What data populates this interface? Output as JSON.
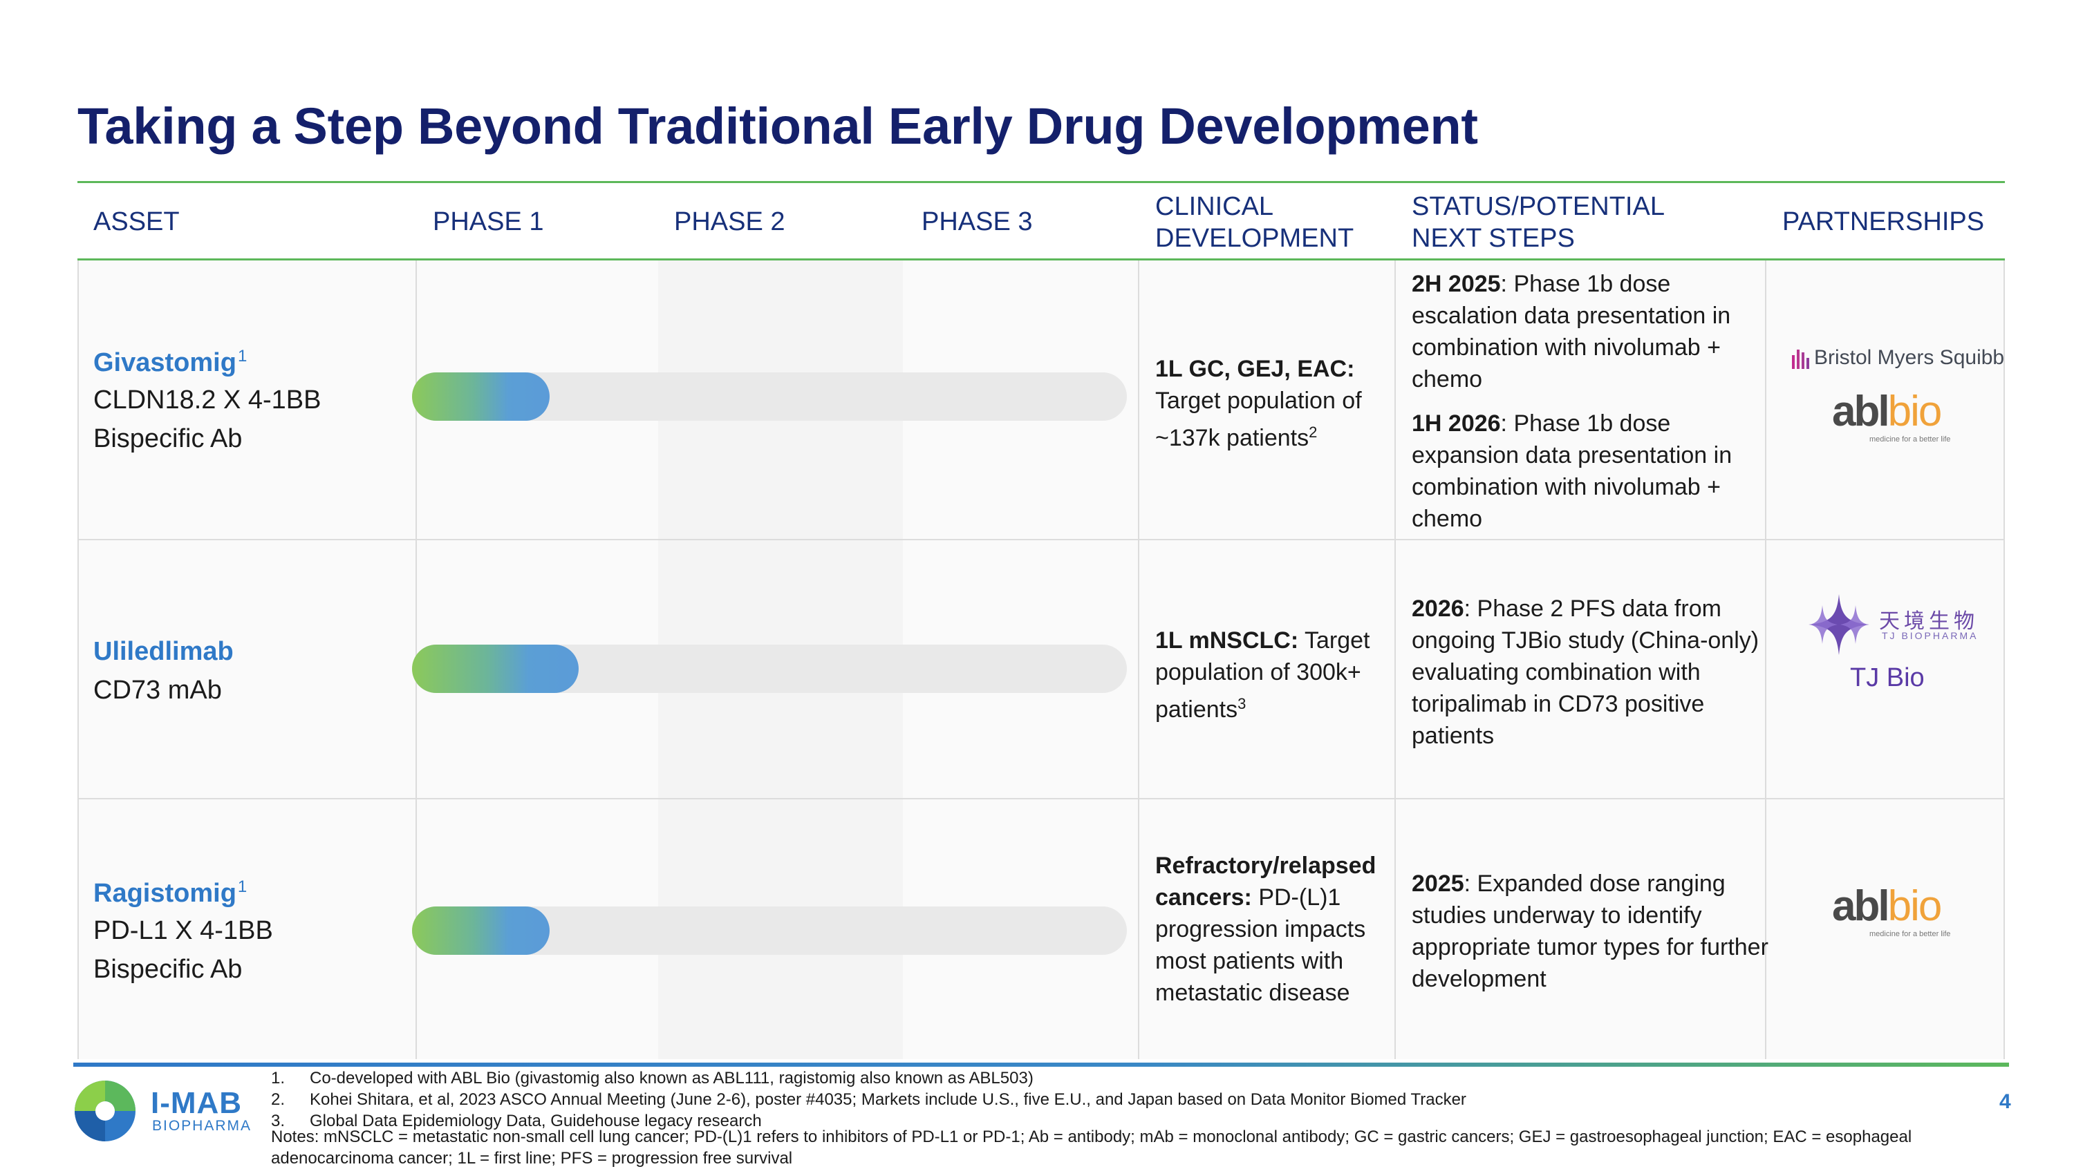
{
  "title": "Taking a Step Beyond Traditional Early Drug Development",
  "headers": {
    "asset": "ASSET",
    "phase1": "PHASE 1",
    "phase2": "PHASE 2",
    "phase3": "PHASE  3",
    "clinical_1": "CLINICAL",
    "clinical_2": "DEVELOPMENT",
    "status_1": "STATUS/POTENTIAL",
    "status_2": "NEXT STEPS",
    "partnerships": "PARTNERSHIPS"
  },
  "rows": [
    {
      "name": "Givastomig",
      "name_sup": "1",
      "line1": "CLDN18.2 X 4-1BB",
      "line2": "Bispecific Ab",
      "progress_pct": 19.2,
      "clinical_bold": "1L GC, GEJ, EAC:",
      "clinical_text": "Target population of ~137k patients",
      "clinical_sup": "2",
      "status": [
        {
          "bold": "2H 2025",
          "text": ": Phase 1b dose escalation data presentation in combination with nivolumab + chemo"
        },
        {
          "bold": "1H 2026",
          "text": ": Phase 1b dose expansion data presentation in combination with nivolumab + chemo"
        }
      ],
      "partners": [
        "Bristol Myers Squibb",
        "ablbio"
      ]
    },
    {
      "name": "Uliledlimab",
      "line1": "CD73 mAb",
      "progress_pct": 23.3,
      "clinical_bold": "1L mNSCLC:",
      "clinical_text": " Target population of 300k+ patients",
      "clinical_sup": "3",
      "status": [
        {
          "bold": "2026",
          "text": ": Phase 2 PFS data from ongoing TJBio study (China-only) evaluating combination with toripalimab in CD73 positive patients"
        }
      ],
      "partners": [
        "TJ Bio"
      ]
    },
    {
      "name": "Ragistomig",
      "name_sup": "1",
      "line1": "PD-L1 X 4-1BB",
      "line2": "Bispecific Ab",
      "progress_pct": 19.2,
      "clinical_bold": "Refractory/relapsed cancers:",
      "clinical_text": " PD-(L)1 progression impacts most patients with metastatic disease",
      "status": [
        {
          "bold": "2025",
          "text": ": Expanded dose ranging studies underway to identify appropriate tumor types for further development"
        }
      ],
      "partners": [
        "ablbio"
      ]
    }
  ],
  "logos": {
    "bms": "Bristol Myers Squibb",
    "abl_dark": "abl",
    "abl_orange": "bio",
    "abl_tagline": "medicine for a better life",
    "tj_zh": "天境生物",
    "tj_en": "TJ BIOPHARMA",
    "tj_label": "TJ Bio",
    "imab": "I-MAB",
    "imab_sub": "BIOPHARMA"
  },
  "footnotes": [
    {
      "num": "1.",
      "text": "Co-developed with ABL Bio (givastomig also known as ABL111, ragistomig also known as ABL503)"
    },
    {
      "num": "2.",
      "text": "Kohei Shitara, et al, 2023 ASCO Annual Meeting (June 2-6), poster #4035; Markets include U.S., five E.U., and Japan based on Data Monitor Biomed Tracker"
    },
    {
      "num": "3.",
      "text": "Global Data Epidemiology Data, Guidehouse legacy research"
    }
  ],
  "notes": "Notes: mNSCLC = metastatic non-small cell lung cancer; PD-(L)1 refers to inhibitors of PD-L1 or PD-1; Ab = antibody; mAb = monoclonal antibody; GC = gastric cancers; GEJ = gastroesophageal junction; EAC = esophageal adenocarcinoma cancer; 1L = first line; PFS = progression free survival",
  "page_number": "4",
  "colors": {
    "title": "#14206b",
    "header": "#17307a",
    "asset_name": "#2f79c7",
    "rule": "#5db85a",
    "bar_start": "#8cc95a",
    "bar_end": "#5b9bd8",
    "tj": "#5a3aa6"
  }
}
